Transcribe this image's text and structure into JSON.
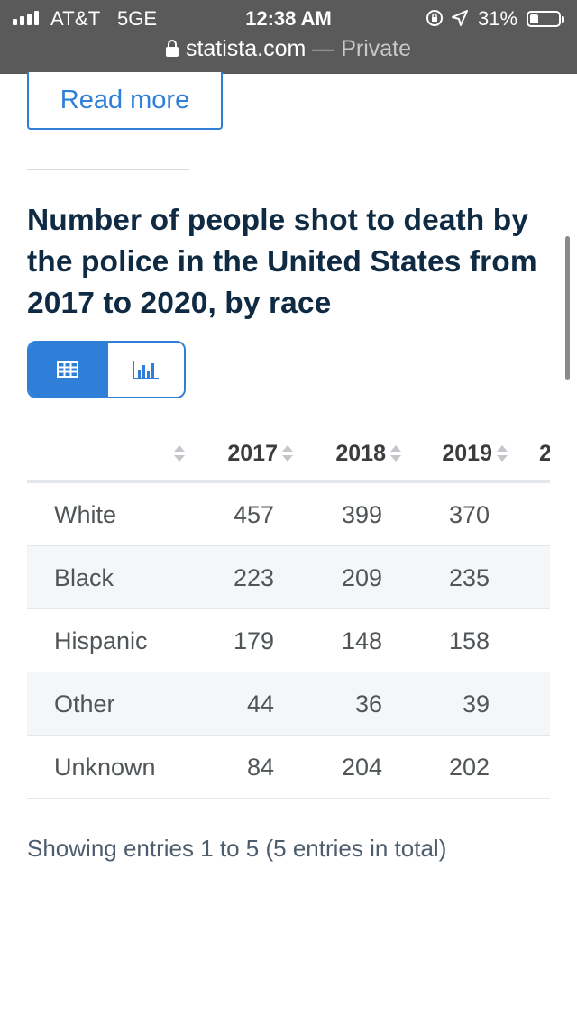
{
  "status_bar": {
    "carrier": "AT&T",
    "network": "5GE",
    "time": "12:38 AM",
    "battery_percent": "31%",
    "battery_level": 0.31,
    "icons": [
      "signal-icon",
      "rotation-lock-icon",
      "location-icon",
      "battery-icon"
    ]
  },
  "address_bar": {
    "domain": "statista.com",
    "separator_private": " — Private",
    "icon": "lock-icon"
  },
  "content": {
    "read_more_label": "Read more",
    "title": "Number of people shot to death by the police in the United States from 2017 to 2020, by race",
    "view_toggle": {
      "active": "table",
      "icons": [
        "table-icon",
        "bar-chart-icon"
      ]
    }
  },
  "table": {
    "columns": [
      "2017",
      "2018",
      "2019",
      "2"
    ],
    "rows": [
      {
        "label": "White",
        "values": [
          "457",
          "399",
          "370"
        ]
      },
      {
        "label": "Black",
        "values": [
          "223",
          "209",
          "235"
        ]
      },
      {
        "label": "Hispanic",
        "values": [
          "179",
          "148",
          "158"
        ]
      },
      {
        "label": "Other",
        "values": [
          "44",
          "36",
          "39"
        ]
      },
      {
        "label": "Unknown",
        "values": [
          "84",
          "204",
          "202"
        ]
      }
    ],
    "footer": "Showing entries 1 to 5 (5 entries in total)"
  },
  "colors": {
    "accent": "#2f7ed8",
    "title": "#0f2a43",
    "status_bar_bg": "#5a5a5a"
  }
}
